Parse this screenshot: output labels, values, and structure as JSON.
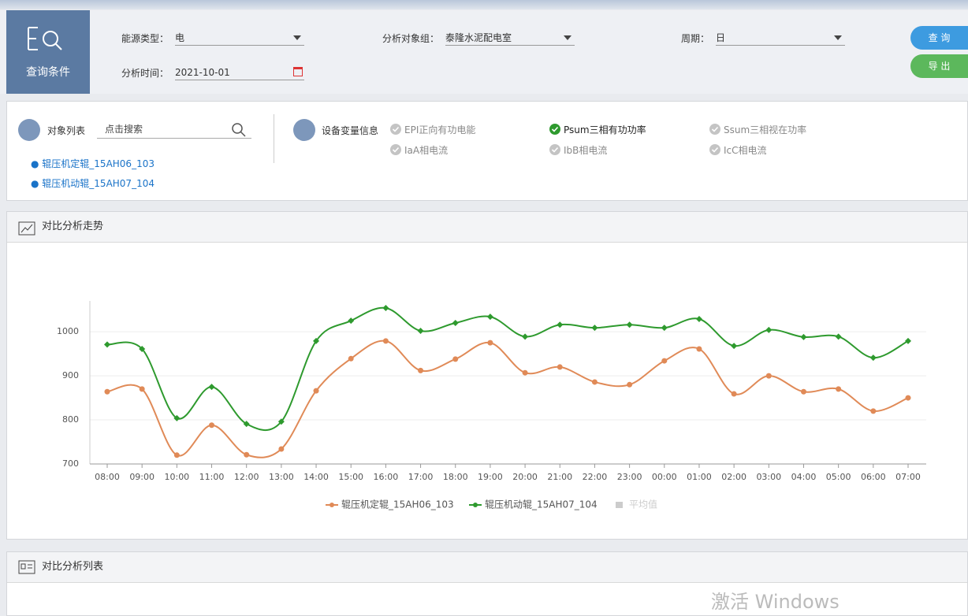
{
  "query": {
    "title": "查询条件",
    "fields": [
      {
        "label": "能源类型：",
        "value": "电"
      },
      {
        "label": "分析对象组：",
        "value": "泰隆水泥配电室"
      },
      {
        "label": "周期：",
        "value": "日"
      },
      {
        "label": "分析时间：",
        "value": "2021-10-01"
      }
    ],
    "buttons": [
      "查 询",
      "导 出"
    ]
  },
  "objects": {
    "title": "对象列表",
    "search_placeholder": "点击搜索",
    "items": [
      "辊压机定辊_15AH06_103",
      "辊压机动辊_15AH07_104"
    ]
  },
  "variables": {
    "title": "设备变量信息",
    "items": [
      {
        "label": "EPI正向有功电能",
        "checked": false
      },
      {
        "label": "Psum三相有功功率",
        "checked": true
      },
      {
        "label": "Ssum三相视在功率",
        "checked": false
      },
      {
        "label": "IaA相电流",
        "checked": false
      },
      {
        "label": "IbB相电流",
        "checked": false
      },
      {
        "label": "IcC相电流",
        "checked": false
      }
    ]
  },
  "trend_panel": {
    "title": "对比分析走势"
  },
  "chart_data": {
    "type": "line",
    "categories": [
      "08:00",
      "09:00",
      "10:00",
      "11:00",
      "12:00",
      "13:00",
      "14:00",
      "15:00",
      "16:00",
      "17:00",
      "18:00",
      "19:00",
      "20:00",
      "21:00",
      "22:00",
      "23:00",
      "00:00",
      "01:00",
      "02:00",
      "03:00",
      "04:00",
      "05:00",
      "06:00",
      "07:00"
    ],
    "series": [
      {
        "name": "辊压机定辊_15AH06_103",
        "color": "#e08a57",
        "values": [
          864,
          870,
          720,
          788,
          721,
          734,
          866,
          939,
          979,
          912,
          938,
          975,
          907,
          920,
          886,
          880,
          934,
          961,
          859,
          900,
          864,
          870,
          820,
          850
        ]
      },
      {
        "name": "辊压机动辊_15AH07_104",
        "color": "#2e9a2e",
        "values": [
          971,
          961,
          804,
          875,
          791,
          796,
          979,
          1025,
          1054,
          1002,
          1020,
          1034,
          989,
          1016,
          1009,
          1016,
          1009,
          1029,
          968,
          1004,
          988,
          989,
          941,
          979
        ]
      }
    ],
    "inactive_legend": [
      {
        "name": "平均值",
        "color": "#cccccc"
      }
    ],
    "ylim": [
      700,
      1070
    ],
    "yticks": [
      700,
      800,
      900,
      1000
    ],
    "grid": true,
    "smooth": true
  },
  "table_panel": {
    "title": "对比分析列表"
  },
  "watermark": "激活 Windows"
}
